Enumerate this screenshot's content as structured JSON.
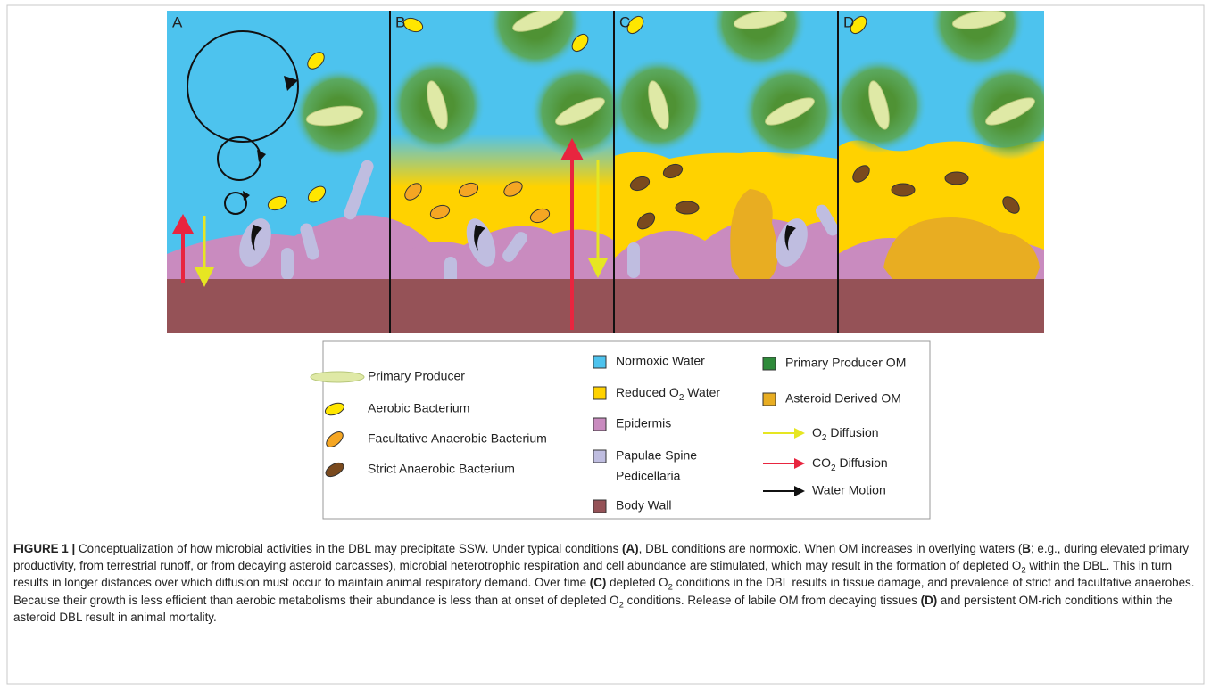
{
  "figure": {
    "panels": [
      "A",
      "B",
      "C",
      "D"
    ],
    "legend": {
      "organisms": [
        "Primary Producer",
        "Aerobic Bacterium",
        "Facultative Anaerobic Bacterium",
        "Strict Anaerobic Bacterium"
      ],
      "zones": [
        [
          "Normoxic Water"
        ],
        [
          "Reduced O",
          "2",
          " Water"
        ],
        [
          "Epidermis"
        ],
        [
          "Papulae Spine",
          "Pedicellaria"
        ],
        [
          "Body Wall"
        ]
      ],
      "other": [
        [
          "Primary Producer OM"
        ],
        [
          "Asteroid Derived OM"
        ],
        [
          "O",
          "2",
          " Diffusion"
        ],
        [
          "CO",
          "2",
          " Diffusion"
        ],
        [
          "Water Motion"
        ]
      ]
    },
    "caption": [
      "FIGURE 1 | ",
      "Conceptualization of how microbial activities in the DBL may precipitate SSW. Under typical conditions ",
      "(A)",
      ", DBL conditions are normoxic. When OM increases in overlying waters (",
      "B",
      "; e.g., during elevated primary productivity, from terrestrial runoff, or from decaying asteroid carcasses), microbial heterotrophic respiration and cell abundance are stimulated, which may result in the formation of depleted O",
      "2",
      " within the DBL. This in turn results in longer distances over which diffusion must occur to maintain animal respiratory demand. Over time ",
      "(C)",
      " depleted O",
      "2",
      " conditions in the DBL results in tissue damage, and prevalence of strict and facultative anaerobes. Because their growth is less efficient than aerobic metabolisms their abundance is less than at onset of depleted O",
      "2",
      " conditions. Release of labile OM from decaying tissues ",
      "(D)",
      " and persistent OM-rich conditions within the asteroid DBL result in animal mortality."
    ]
  }
}
